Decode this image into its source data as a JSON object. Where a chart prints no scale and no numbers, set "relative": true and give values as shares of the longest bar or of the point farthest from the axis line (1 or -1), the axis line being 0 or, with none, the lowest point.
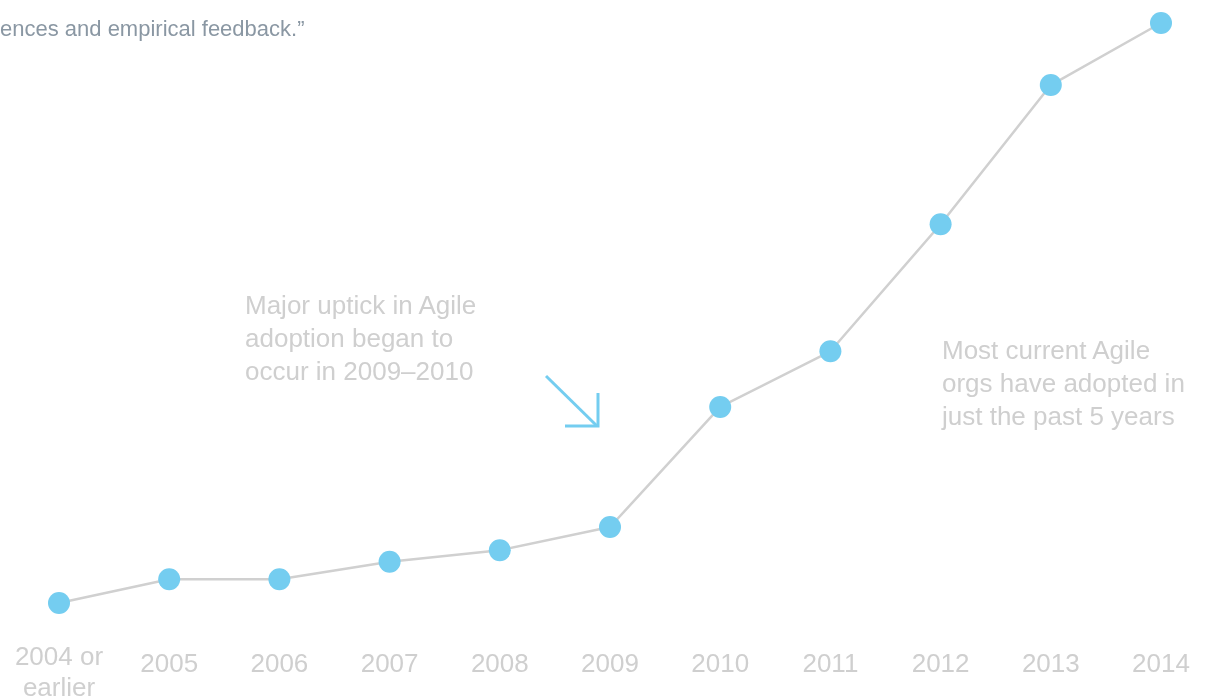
{
  "chart_data": {
    "type": "line",
    "relative": true,
    "marker": "circle",
    "categories": [
      "2004 or earlier",
      "2005",
      "2006",
      "2007",
      "2008",
      "2009",
      "2010",
      "2011",
      "2012",
      "2013",
      "2014"
    ],
    "series": [
      {
        "color": "#74cdf0",
        "values": [
          0,
          0.041,
          0.041,
          0.071,
          0.091,
          0.131,
          0.338,
          0.434,
          0.653,
          0.893,
          1
        ]
      }
    ],
    "annotations": [
      "ences and empirical feedback.”",
      "Major uptick in Agile adoption began to occur in 2009–2010",
      "Most current Agile orgs have adopted in just the past 5 years"
    ]
  }
}
